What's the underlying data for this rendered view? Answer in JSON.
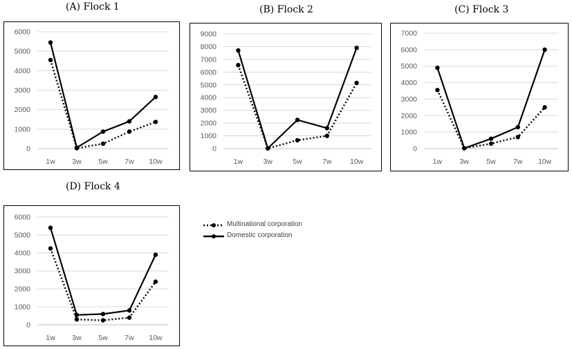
{
  "legend": {
    "multinational": "Multinational corporation",
    "domestic": "Domestic corporation"
  },
  "chart_data": [
    {
      "type": "line",
      "title": "(A)  Flock  1",
      "categories": [
        "1w",
        "3w",
        "5w",
        "7w",
        "10w"
      ],
      "ylim": [
        0,
        6000
      ],
      "yticks": [
        0,
        1000,
        2000,
        3000,
        4000,
        5000,
        6000
      ],
      "grid": true,
      "series": [
        {
          "name": "Multinational corporation",
          "style": "dotted",
          "values": [
            4550,
            20,
            250,
            870,
            1370
          ]
        },
        {
          "name": "Domestic corporation",
          "style": "solid",
          "values": [
            5450,
            50,
            870,
            1400,
            2650
          ]
        }
      ]
    },
    {
      "type": "line",
      "title": "(B)  Flock  2",
      "categories": [
        "1w",
        "3w",
        "5w",
        "7w",
        "10w"
      ],
      "ylim": [
        0,
        9000
      ],
      "yticks": [
        0,
        1000,
        2000,
        3000,
        4000,
        5000,
        6000,
        7000,
        8000,
        9000
      ],
      "grid": true,
      "series": [
        {
          "name": "Multinational corporation",
          "style": "dotted",
          "values": [
            6550,
            20,
            650,
            1000,
            5150
          ]
        },
        {
          "name": "Domestic corporation",
          "style": "solid",
          "values": [
            7700,
            20,
            2250,
            1600,
            7900
          ]
        }
      ]
    },
    {
      "type": "line",
      "title": "(C)  Flock  3",
      "categories": [
        "1w",
        "3w",
        "5w",
        "7w",
        "10w"
      ],
      "ylim": [
        0,
        7000
      ],
      "yticks": [
        0,
        1000,
        2000,
        3000,
        4000,
        5000,
        6000,
        7000
      ],
      "grid": true,
      "series": [
        {
          "name": "Multinational corporation",
          "style": "dotted",
          "values": [
            3550,
            20,
            300,
            700,
            2500
          ]
        },
        {
          "name": "Domestic corporation",
          "style": "solid",
          "values": [
            4900,
            20,
            600,
            1300,
            6000
          ]
        }
      ]
    },
    {
      "type": "line",
      "title": "(D)  Flock  4",
      "categories": [
        "1w",
        "3w",
        "5w",
        "7w",
        "10w"
      ],
      "ylim": [
        0,
        6000
      ],
      "yticks": [
        0,
        1000,
        2000,
        3000,
        4000,
        5000,
        6000
      ],
      "grid": true,
      "series": [
        {
          "name": "Multinational corporation",
          "style": "dotted",
          "values": [
            4250,
            300,
            250,
            400,
            2400
          ]
        },
        {
          "name": "Domestic corporation",
          "style": "solid",
          "values": [
            5400,
            550,
            600,
            800,
            3900
          ]
        }
      ]
    }
  ]
}
